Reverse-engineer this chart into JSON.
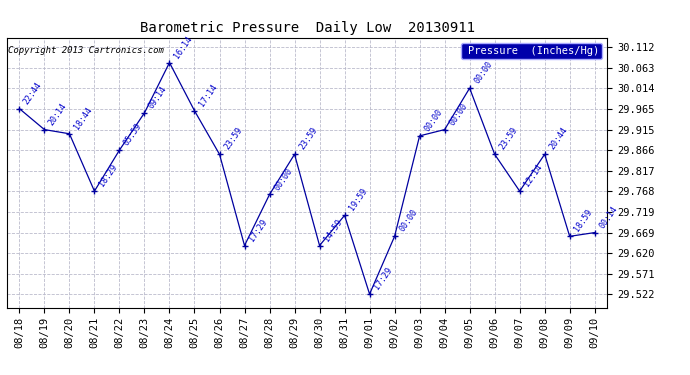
{
  "title": "Barometric Pressure  Daily Low  20130911",
  "copyright": "Copyright 2013 Cartronics.com",
  "legend_label": "Pressure  (Inches/Hg)",
  "background_color": "#ffffff",
  "plot_bg_color": "#ffffff",
  "grid_color": "#bbbbcc",
  "line_color": "#00009f",
  "text_color": "#0000cc",
  "title_color": "#000000",
  "points": [
    {
      "date": "08/18",
      "time": "22:44",
      "value": 29.965
    },
    {
      "date": "08/19",
      "time": "20:14",
      "value": 29.915
    },
    {
      "date": "08/20",
      "time": "18:44",
      "value": 29.905
    },
    {
      "date": "08/21",
      "time": "18:29",
      "value": 29.768
    },
    {
      "date": "08/22",
      "time": "05:59",
      "value": 29.866
    },
    {
      "date": "08/23",
      "time": "09:14",
      "value": 29.955
    },
    {
      "date": "08/24",
      "time": "16:14",
      "value": 30.075
    },
    {
      "date": "08/25",
      "time": "17:14",
      "value": 29.96
    },
    {
      "date": "08/26",
      "time": "23:59",
      "value": 29.856
    },
    {
      "date": "08/27",
      "time": "17:29",
      "value": 29.638
    },
    {
      "date": "08/28",
      "time": "00:00",
      "value": 29.76
    },
    {
      "date": "08/29",
      "time": "23:59",
      "value": 29.856
    },
    {
      "date": "08/30",
      "time": "14:59",
      "value": 29.638
    },
    {
      "date": "08/31",
      "time": "19:59",
      "value": 29.71
    },
    {
      "date": "09/01",
      "time": "17:29",
      "value": 29.522
    },
    {
      "date": "09/02",
      "time": "00:00",
      "value": 29.66
    },
    {
      "date": "09/03",
      "time": "00:00",
      "value": 29.9
    },
    {
      "date": "09/04",
      "time": "00:00",
      "value": 29.915
    },
    {
      "date": "09/05",
      "time": "00:00",
      "value": 30.014
    },
    {
      "date": "09/06",
      "time": "23:59",
      "value": 29.856
    },
    {
      "date": "09/07",
      "time": "12:14",
      "value": 29.768
    },
    {
      "date": "09/08",
      "time": "20:44",
      "value": 29.856
    },
    {
      "date": "09/09",
      "time": "18:59",
      "value": 29.66
    },
    {
      "date": "09/10",
      "time": "00:14",
      "value": 29.669
    }
  ],
  "yticks": [
    29.522,
    29.571,
    29.62,
    29.669,
    29.719,
    29.768,
    29.817,
    29.866,
    29.915,
    29.965,
    30.014,
    30.063,
    30.112
  ],
  "ylim": [
    29.49,
    30.135
  ],
  "figsize": [
    6.9,
    3.75
  ],
  "dpi": 100
}
